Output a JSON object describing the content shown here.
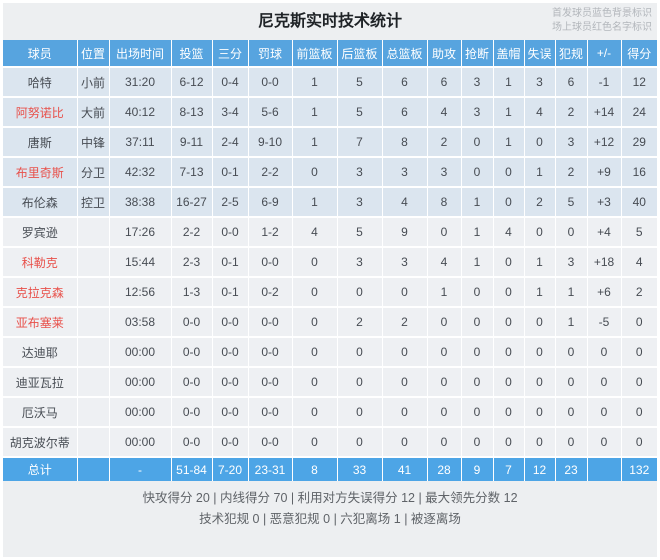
{
  "header": {
    "title": "尼克斯实时技术统计",
    "legend_line1": "首发球员蓝色背景标识",
    "legend_line2": "场上球员红色名字标识"
  },
  "table": {
    "columns": [
      "球员",
      "位置",
      "出场时间",
      "投篮",
      "三分",
      "罚球",
      "前篮板",
      "后篮板",
      "总篮板",
      "助攻",
      "抢断",
      "盖帽",
      "失误",
      "犯规",
      "+/-",
      "得分"
    ],
    "players": [
      {
        "name": "哈特",
        "red": false,
        "starter": true,
        "cells": [
          "小前",
          "31:20",
          "6-12",
          "0-4",
          "0-0",
          "1",
          "5",
          "6",
          "6",
          "3",
          "1",
          "3",
          "6",
          "-1",
          "12"
        ]
      },
      {
        "name": "阿努诺比",
        "red": true,
        "starter": true,
        "cells": [
          "大前",
          "40:12",
          "8-13",
          "3-4",
          "5-6",
          "1",
          "5",
          "6",
          "4",
          "3",
          "1",
          "4",
          "2",
          "+14",
          "24"
        ]
      },
      {
        "name": "唐斯",
        "red": false,
        "starter": true,
        "cells": [
          "中锋",
          "37:11",
          "9-11",
          "2-4",
          "9-10",
          "1",
          "7",
          "8",
          "2",
          "0",
          "1",
          "0",
          "3",
          "+12",
          "29"
        ]
      },
      {
        "name": "布里奇斯",
        "red": true,
        "starter": true,
        "cells": [
          "分卫",
          "42:32",
          "7-13",
          "0-1",
          "2-2",
          "0",
          "3",
          "3",
          "3",
          "0",
          "0",
          "1",
          "2",
          "+9",
          "16"
        ]
      },
      {
        "name": "布伦森",
        "red": false,
        "starter": true,
        "cells": [
          "控卫",
          "38:38",
          "16-27",
          "2-5",
          "6-9",
          "1",
          "3",
          "4",
          "8",
          "1",
          "0",
          "2",
          "5",
          "+3",
          "40"
        ]
      },
      {
        "name": "罗宾逊",
        "red": false,
        "starter": false,
        "cells": [
          "",
          "17:26",
          "2-2",
          "0-0",
          "1-2",
          "4",
          "5",
          "9",
          "0",
          "1",
          "4",
          "0",
          "0",
          "+4",
          "5"
        ]
      },
      {
        "name": "科勒克",
        "red": true,
        "starter": false,
        "cells": [
          "",
          "15:44",
          "2-3",
          "0-1",
          "0-0",
          "0",
          "3",
          "3",
          "4",
          "1",
          "0",
          "1",
          "3",
          "+18",
          "4"
        ]
      },
      {
        "name": "克拉克森",
        "red": true,
        "starter": false,
        "cells": [
          "",
          "12:56",
          "1-3",
          "0-1",
          "0-2",
          "0",
          "0",
          "0",
          "1",
          "0",
          "0",
          "1",
          "1",
          "+6",
          "2"
        ]
      },
      {
        "name": "亚布塞莱",
        "red": true,
        "starter": false,
        "cells": [
          "",
          "03:58",
          "0-0",
          "0-0",
          "0-0",
          "0",
          "2",
          "2",
          "0",
          "0",
          "0",
          "0",
          "1",
          "-5",
          "0"
        ]
      },
      {
        "name": "达迪耶",
        "red": false,
        "starter": false,
        "cells": [
          "",
          "00:00",
          "0-0",
          "0-0",
          "0-0",
          "0",
          "0",
          "0",
          "0",
          "0",
          "0",
          "0",
          "0",
          "0",
          "0"
        ]
      },
      {
        "name": "迪亚瓦拉",
        "red": false,
        "starter": false,
        "cells": [
          "",
          "00:00",
          "0-0",
          "0-0",
          "0-0",
          "0",
          "0",
          "0",
          "0",
          "0",
          "0",
          "0",
          "0",
          "0",
          "0"
        ]
      },
      {
        "name": "厄沃马",
        "red": false,
        "starter": false,
        "cells": [
          "",
          "00:00",
          "0-0",
          "0-0",
          "0-0",
          "0",
          "0",
          "0",
          "0",
          "0",
          "0",
          "0",
          "0",
          "0",
          "0"
        ]
      },
      {
        "name": "胡克波尔蒂",
        "red": false,
        "starter": false,
        "cells": [
          "",
          "00:00",
          "0-0",
          "0-0",
          "0-0",
          "0",
          "0",
          "0",
          "0",
          "0",
          "0",
          "0",
          "0",
          "0",
          "0"
        ]
      }
    ],
    "totals": {
      "name": "总计",
      "cells": [
        "",
        "-",
        "51-84",
        "7-20",
        "23-31",
        "8",
        "33",
        "41",
        "28",
        "9",
        "7",
        "12",
        "23",
        "",
        "132"
      ]
    }
  },
  "footer": {
    "line1": "快攻得分 20 | 内线得分 70 | 利用对方失误得分 12 | 最大领先分数 12",
    "line2": "技术犯规 0 | 恶意犯规 0 | 六犯离场 1 | 被逐离场"
  },
  "colors": {
    "header_blue": "#57a4df",
    "total_blue": "#4da5e6",
    "starter_row_bg": "#dbe5ef",
    "bench_row_bg": "#eef0f3",
    "oncourt_name_red": "#e8504a",
    "panel_bg": "#edeff1"
  }
}
